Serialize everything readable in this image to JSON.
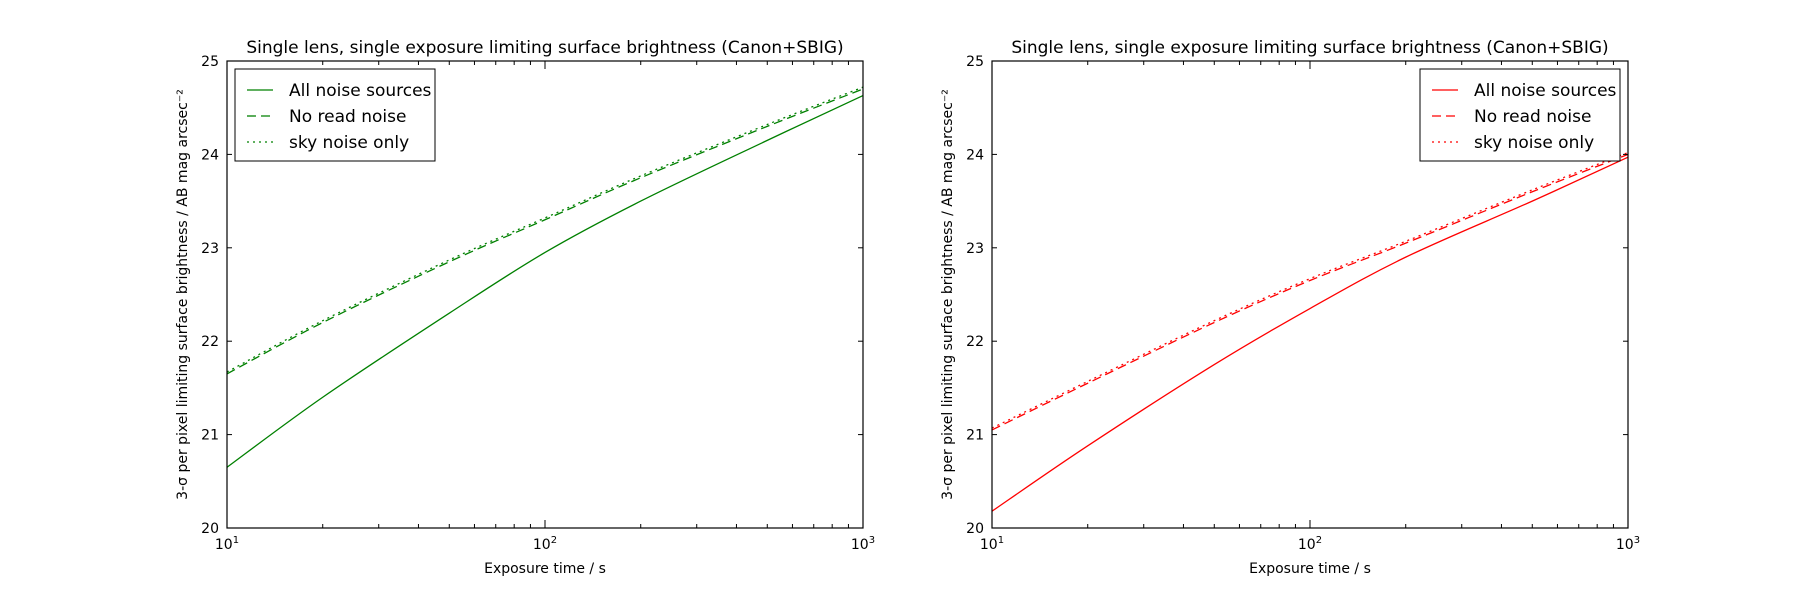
{
  "chart_data": [
    {
      "type": "line",
      "title": "Single lens, single exposure limiting surface brightness (Canon+SBIG)",
      "xlabel": "Exposure time / s",
      "ylabel": "3-σ per pixel limiting surface brightness / AB mag arcsec⁻²",
      "xscale": "log",
      "xlim": [
        10,
        1000
      ],
      "ylim": [
        20,
        25
      ],
      "x_ticks": [
        {
          "value": 10,
          "base": "10",
          "exp": "1"
        },
        {
          "value": 100,
          "base": "10",
          "exp": "2"
        },
        {
          "value": 1000,
          "base": "10",
          "exp": "3"
        }
      ],
      "y_ticks": [
        "20",
        "21",
        "22",
        "23",
        "24",
        "25"
      ],
      "grid": false,
      "legend_position": "top-left",
      "color": "#008000",
      "series": [
        {
          "name": "All noise sources",
          "style": "solid",
          "x": [
            10,
            20,
            50,
            100,
            200,
            500,
            1000
          ],
          "y": [
            20.65,
            21.4,
            22.3,
            22.95,
            23.5,
            24.15,
            24.63
          ]
        },
        {
          "name": "No read noise",
          "style": "dashed",
          "x": [
            10,
            20,
            50,
            100,
            200,
            500,
            1000
          ],
          "y": [
            21.65,
            22.2,
            22.85,
            23.3,
            23.75,
            24.3,
            24.7
          ]
        },
        {
          "name": "sky noise only",
          "style": "dotted",
          "x": [
            10,
            20,
            50,
            100,
            200,
            500,
            1000
          ],
          "y": [
            21.67,
            22.22,
            22.87,
            23.32,
            23.77,
            24.32,
            24.72
          ]
        }
      ]
    },
    {
      "type": "line",
      "title": "Single lens, single exposure limiting surface brightness (Canon+SBIG)",
      "xlabel": "Exposure time / s",
      "ylabel": "3-σ per pixel limiting surface brightness / AB mag arcsec⁻²",
      "xscale": "log",
      "xlim": [
        10,
        1000
      ],
      "ylim": [
        20,
        25
      ],
      "x_ticks": [
        {
          "value": 10,
          "base": "10",
          "exp": "1"
        },
        {
          "value": 100,
          "base": "10",
          "exp": "2"
        },
        {
          "value": 1000,
          "base": "10",
          "exp": "3"
        }
      ],
      "y_ticks": [
        "20",
        "21",
        "22",
        "23",
        "24",
        "25"
      ],
      "grid": false,
      "legend_position": "top-right",
      "color": "#ff0000",
      "series": [
        {
          "name": "All noise sources",
          "style": "solid",
          "x": [
            10,
            20,
            50,
            100,
            200,
            500,
            1000
          ],
          "y": [
            20.18,
            20.88,
            21.75,
            22.35,
            22.9,
            23.5,
            23.97
          ]
        },
        {
          "name": "No read noise",
          "style": "dashed",
          "x": [
            10,
            20,
            50,
            100,
            200,
            500,
            1000
          ],
          "y": [
            21.05,
            21.55,
            22.2,
            22.65,
            23.05,
            23.6,
            24.0
          ]
        },
        {
          "name": "sky noise only",
          "style": "dotted",
          "x": [
            10,
            20,
            50,
            100,
            200,
            500,
            1000
          ],
          "y": [
            21.07,
            21.57,
            22.22,
            22.67,
            23.07,
            23.62,
            24.02
          ]
        }
      ]
    }
  ]
}
